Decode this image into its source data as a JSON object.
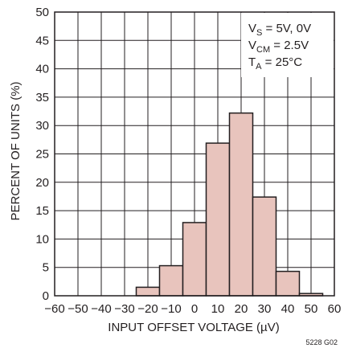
{
  "chart_data": {
    "type": "bar",
    "bin_edges": [
      -25,
      -15,
      -5,
      5,
      15,
      25,
      35,
      45,
      55
    ],
    "values": [
      1.5,
      5.3,
      12.9,
      26.9,
      32.2,
      17.4,
      4.3,
      0.4
    ],
    "xlabel": "INPUT OFFSET VOLTAGE (µV)",
    "ylabel": "PERCENT OF UNITS (%)",
    "xlim": [
      -60,
      60
    ],
    "ylim": [
      0,
      50
    ],
    "x_ticks": [
      "−60",
      "−50",
      "−40",
      "−30",
      "−20",
      "−10",
      "0",
      "10",
      "20",
      "30",
      "40",
      "50",
      "60"
    ],
    "y_ticks": [
      "0",
      "5",
      "10",
      "15",
      "20",
      "25",
      "30",
      "35",
      "40",
      "45",
      "50"
    ],
    "grid": true,
    "annotations": [
      {
        "main": "V",
        "sub": "S",
        "rest": " = 5V, 0V"
      },
      {
        "main": "V",
        "sub": "CM",
        "rest": " = 2.5V"
      },
      {
        "main": "T",
        "sub": "A",
        "rest": " = 25°C"
      }
    ],
    "figure_id": "5228 G02",
    "colors": {
      "bar_fill": "#e8c4bd",
      "bar_stroke": "#231f20",
      "grid": "#231f20"
    }
  }
}
